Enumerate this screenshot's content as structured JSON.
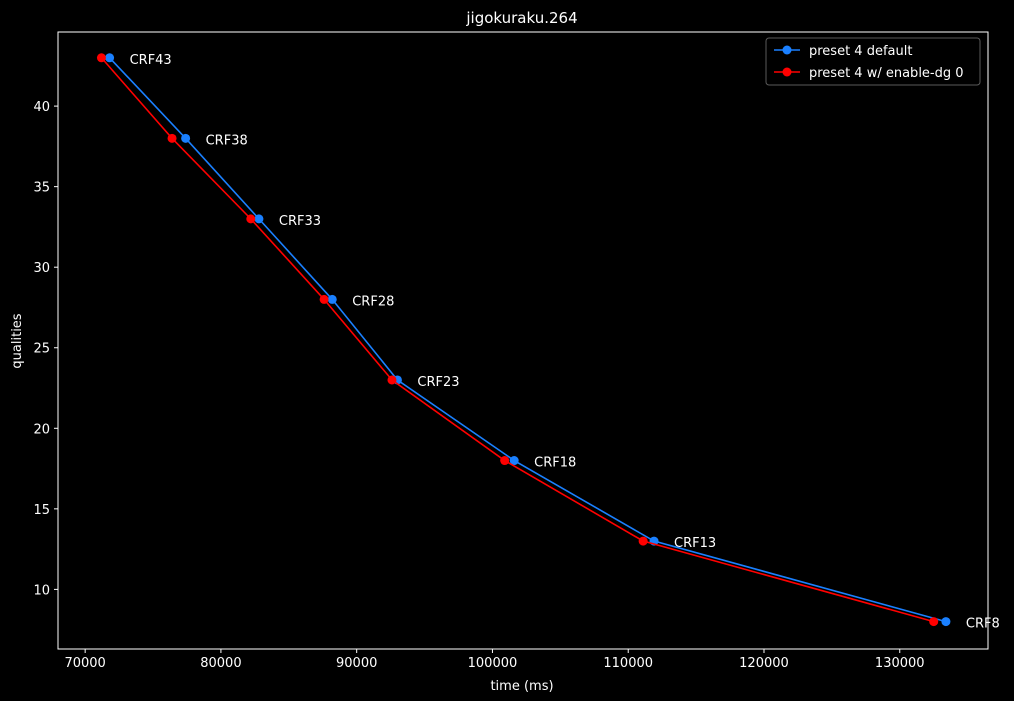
{
  "chart_data": {
    "type": "line",
    "title": "jigokuraku.264",
    "xlabel": "time (ms)",
    "ylabel": "qualities",
    "xlim": [
      68000,
      136500
    ],
    "ylim": [
      6.3,
      44.6
    ],
    "xticks": [
      70000,
      80000,
      90000,
      100000,
      110000,
      120000,
      130000
    ],
    "yticks": [
      10,
      15,
      20,
      25,
      30,
      35,
      40
    ],
    "legend_position": "top-right",
    "grid": false,
    "series": [
      {
        "name": "preset 4 default",
        "color": "#1a80ff",
        "x": [
          71800,
          77400,
          82800,
          88200,
          93000,
          101600,
          111900,
          133400
        ],
        "y": [
          43,
          38,
          33,
          28,
          23,
          18,
          13,
          8
        ]
      },
      {
        "name": "preset 4 w/ enable-dg 0",
        "color": "#ff0000",
        "x": [
          71200,
          76400,
          82200,
          87600,
          92600,
          100900,
          111100,
          132500
        ],
        "y": [
          43,
          38,
          33,
          28,
          23,
          18,
          13,
          8
        ]
      }
    ],
    "annotations": [
      {
        "text": "CRF43",
        "x": 71800,
        "y": 43
      },
      {
        "text": "CRF38",
        "x": 77400,
        "y": 38
      },
      {
        "text": "CRF33",
        "x": 82800,
        "y": 33
      },
      {
        "text": "CRF28",
        "x": 88200,
        "y": 28
      },
      {
        "text": "CRF23",
        "x": 93000,
        "y": 23
      },
      {
        "text": "CRF18",
        "x": 101600,
        "y": 18
      },
      {
        "text": "CRF13",
        "x": 111900,
        "y": 13
      },
      {
        "text": "CRF8",
        "x": 133400,
        "y": 8
      }
    ]
  }
}
